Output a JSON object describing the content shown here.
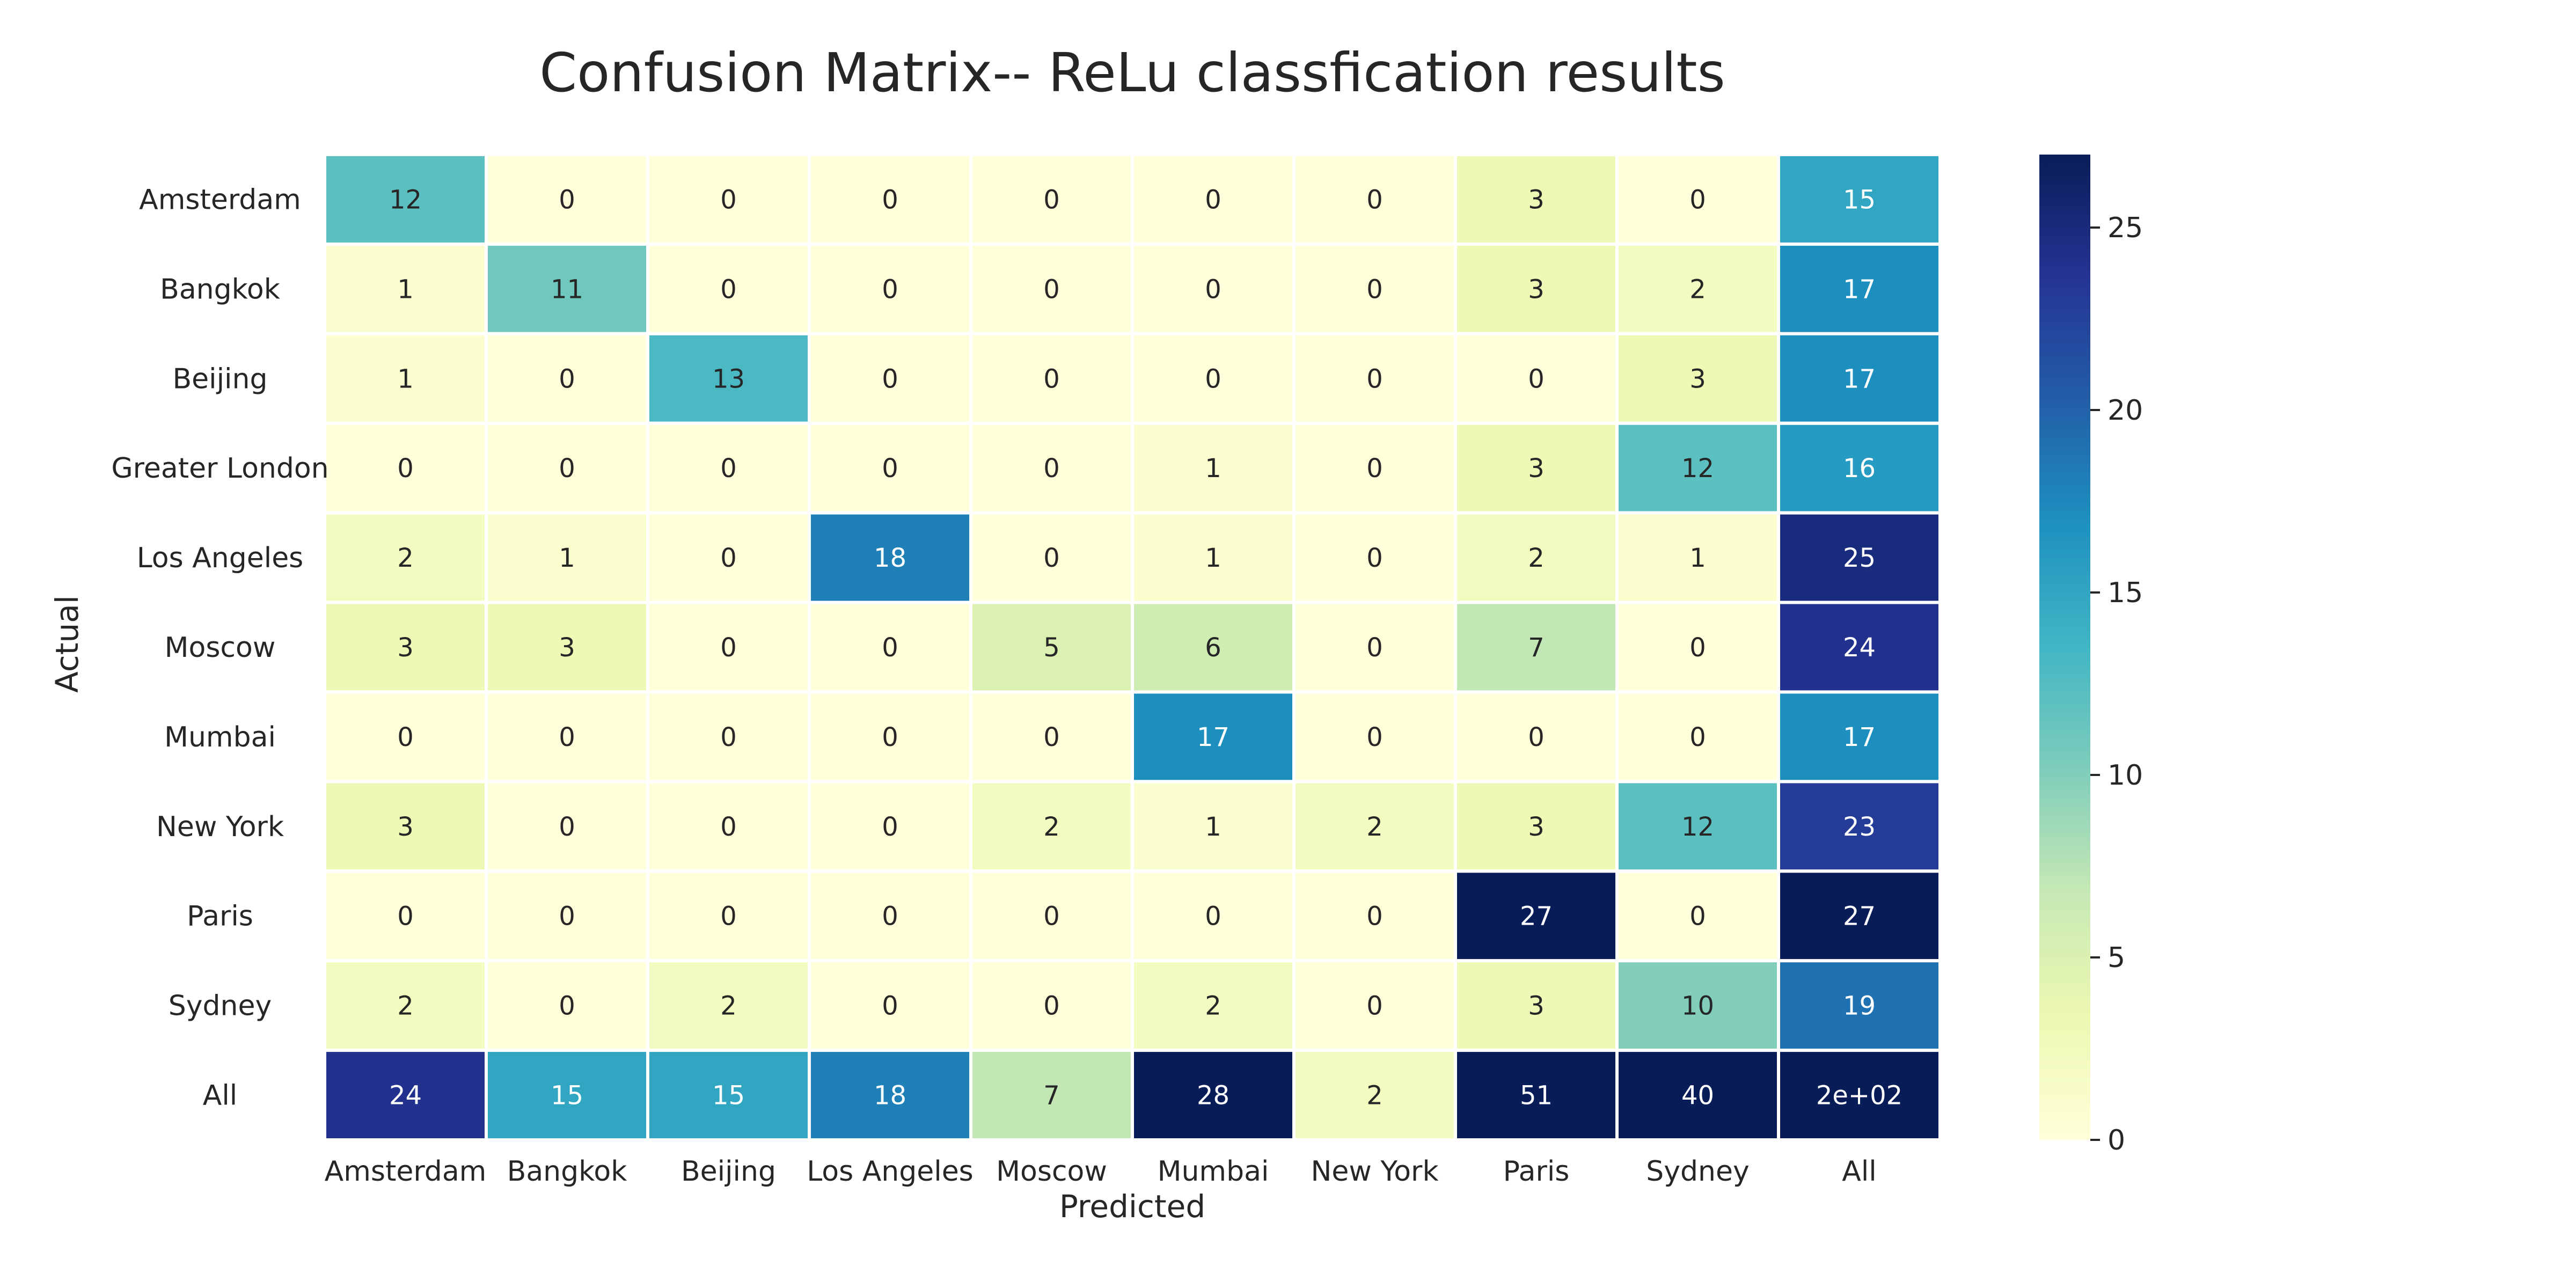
{
  "chart_data": {
    "type": "heatmap",
    "title": "Confusion Matrix-- ReLu classfication results",
    "xlabel": "Predicted",
    "ylabel": "Actual",
    "x_categories": [
      "Amsterdam",
      "Bangkok",
      "Beijing",
      "Los Angeles",
      "Moscow",
      "Mumbai",
      "New York",
      "Paris",
      "Sydney",
      "All"
    ],
    "y_categories": [
      "Amsterdam",
      "Bangkok",
      "Beijing",
      "Greater London",
      "Los Angeles",
      "Moscow",
      "Mumbai",
      "New York",
      "Paris",
      "Sydney",
      "All"
    ],
    "values": [
      [
        12,
        0,
        0,
        0,
        0,
        0,
        0,
        3,
        0,
        15
      ],
      [
        1,
        11,
        0,
        0,
        0,
        0,
        0,
        3,
        2,
        17
      ],
      [
        1,
        0,
        13,
        0,
        0,
        0,
        0,
        0,
        3,
        17
      ],
      [
        0,
        0,
        0,
        0,
        0,
        1,
        0,
        3,
        12,
        16
      ],
      [
        2,
        1,
        0,
        18,
        0,
        1,
        0,
        2,
        1,
        25
      ],
      [
        3,
        3,
        0,
        0,
        5,
        6,
        0,
        7,
        0,
        24
      ],
      [
        0,
        0,
        0,
        0,
        0,
        17,
        0,
        0,
        0,
        17
      ],
      [
        3,
        0,
        0,
        0,
        2,
        1,
        2,
        3,
        12,
        23
      ],
      [
        0,
        0,
        0,
        0,
        0,
        0,
        0,
        27,
        0,
        27
      ],
      [
        2,
        0,
        2,
        0,
        0,
        2,
        0,
        3,
        10,
        19
      ],
      [
        24,
        15,
        15,
        18,
        7,
        28,
        2,
        51,
        40,
        200
      ]
    ],
    "cell_labels": [
      [
        "12",
        "0",
        "0",
        "0",
        "0",
        "0",
        "0",
        "3",
        "0",
        "15"
      ],
      [
        "1",
        "11",
        "0",
        "0",
        "0",
        "0",
        "0",
        "3",
        "2",
        "17"
      ],
      [
        "1",
        "0",
        "13",
        "0",
        "0",
        "0",
        "0",
        "0",
        "3",
        "17"
      ],
      [
        "0",
        "0",
        "0",
        "0",
        "0",
        "1",
        "0",
        "3",
        "12",
        "16"
      ],
      [
        "2",
        "1",
        "0",
        "18",
        "0",
        "1",
        "0",
        "2",
        "1",
        "25"
      ],
      [
        "3",
        "3",
        "0",
        "0",
        "5",
        "6",
        "0",
        "7",
        "0",
        "24"
      ],
      [
        "0",
        "0",
        "0",
        "0",
        "0",
        "17",
        "0",
        "0",
        "0",
        "17"
      ],
      [
        "3",
        "0",
        "0",
        "0",
        "2",
        "1",
        "2",
        "3",
        "12",
        "23"
      ],
      [
        "0",
        "0",
        "0",
        "0",
        "0",
        "0",
        "0",
        "27",
        "0",
        "27"
      ],
      [
        "2",
        "0",
        "2",
        "0",
        "0",
        "2",
        "0",
        "3",
        "10",
        "19"
      ],
      [
        "24",
        "15",
        "15",
        "18",
        "7",
        "28",
        "2",
        "51",
        "40",
        "2e+02"
      ]
    ],
    "colorbar": {
      "colormap": "YlGnBu",
      "range": [
        0,
        27
      ],
      "ticks": [
        "0",
        "5",
        "10",
        "15",
        "20",
        "25"
      ],
      "tick_values": [
        0,
        5,
        10,
        15,
        20,
        25
      ]
    },
    "grid": true
  }
}
